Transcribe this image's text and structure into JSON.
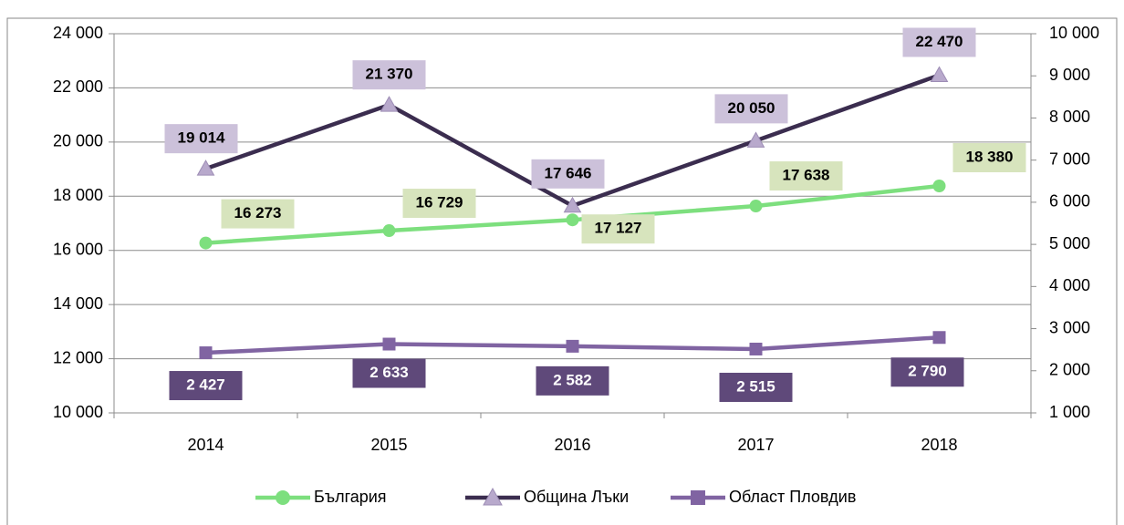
{
  "chart_data": {
    "type": "line",
    "categories": [
      "2014",
      "2015",
      "2016",
      "2017",
      "2018"
    ],
    "series": [
      {
        "name": "България",
        "color": "#7ddf7e",
        "label_bg": "#d7e4bd",
        "label_color": "#000000",
        "marker": "circle",
        "values": [
          16273,
          16729,
          17127,
          17638,
          18380
        ],
        "value_labels": [
          "16 273",
          "16 729",
          "17 127",
          "17 638",
          "18 380"
        ]
      },
      {
        "name": "Община Лъки",
        "color": "#3b2d4f",
        "label_bg": "#ccc1da",
        "label_color": "#000000",
        "marker": "triangle",
        "values": [
          19014,
          21370,
          17646,
          20050,
          22470
        ],
        "value_labels": [
          "19 014",
          "21 370",
          "17 646",
          "20 050",
          "22 470"
        ]
      },
      {
        "name": "Област Пловдив",
        "color": "#8064a2",
        "label_bg": "#5f497a",
        "label_color": "#ffffff",
        "marker": "square",
        "axis": "y2",
        "values": [
          2427,
          2633,
          2582,
          2515,
          2790
        ],
        "value_labels": [
          "2 427",
          "2 633",
          "2 582",
          "2 515",
          "2 790"
        ]
      }
    ],
    "ylim": [
      10000,
      24000
    ],
    "yticks": [
      {
        "value": 10000,
        "label": "10 000"
      },
      {
        "value": 12000,
        "label": "12 000"
      },
      {
        "value": 14000,
        "label": "14 000"
      },
      {
        "value": 16000,
        "label": "16 000"
      },
      {
        "value": 18000,
        "label": "18 000"
      },
      {
        "value": 20000,
        "label": "20 000"
      },
      {
        "value": 22000,
        "label": "22 000"
      },
      {
        "value": 24000,
        "label": "24 000"
      }
    ],
    "y2lim": [
      1000,
      10000
    ],
    "y2ticks": [
      {
        "value": 1000,
        "label": "1 000"
      },
      {
        "value": 2000,
        "label": "2 000"
      },
      {
        "value": 3000,
        "label": "3 000"
      },
      {
        "value": 4000,
        "label": "4 000"
      },
      {
        "value": 5000,
        "label": "5 000"
      },
      {
        "value": 6000,
        "label": "6 000"
      },
      {
        "value": 7000,
        "label": "7 000"
      },
      {
        "value": 8000,
        "label": "8 000"
      },
      {
        "value": 9000,
        "label": "9 000"
      },
      {
        "value": 10000,
        "label": "10 000"
      }
    ],
    "grid": true,
    "legend": "bottom"
  }
}
